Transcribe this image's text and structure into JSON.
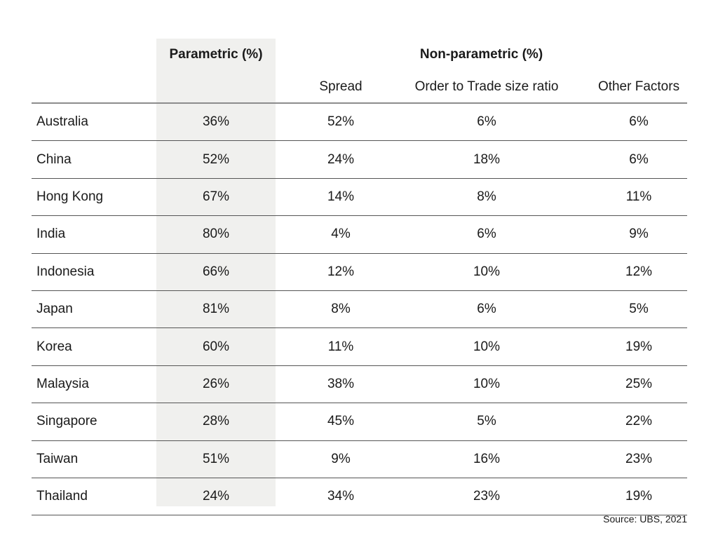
{
  "header": {
    "parametric": "Parametric (%)",
    "non_parametric": "Non-parametric (%)",
    "sub_headers": [
      "Spread",
      "Order to Trade size ratio",
      "Other Factors"
    ]
  },
  "rows": [
    {
      "country": "Australia",
      "parametric": "36%",
      "spread": "52%",
      "order_to_trade": "6%",
      "other": "6%"
    },
    {
      "country": "China",
      "parametric": "52%",
      "spread": "24%",
      "order_to_trade": "18%",
      "other": "6%"
    },
    {
      "country": "Hong Kong",
      "parametric": "67%",
      "spread": "14%",
      "order_to_trade": "8%",
      "other": "11%"
    },
    {
      "country": "India",
      "parametric": "80%",
      "spread": "4%",
      "order_to_trade": "6%",
      "other": "9%"
    },
    {
      "country": "Indonesia",
      "parametric": "66%",
      "spread": "12%",
      "order_to_trade": "10%",
      "other": "12%"
    },
    {
      "country": "Japan",
      "parametric": "81%",
      "spread": "8%",
      "order_to_trade": "6%",
      "other": "5%"
    },
    {
      "country": "Korea",
      "parametric": "60%",
      "spread": "11%",
      "order_to_trade": "10%",
      "other": "19%"
    },
    {
      "country": "Malaysia",
      "parametric": "26%",
      "spread": "38%",
      "order_to_trade": "10%",
      "other": "25%"
    },
    {
      "country": "Singapore",
      "parametric": "28%",
      "spread": "45%",
      "order_to_trade": "5%",
      "other": "22%"
    },
    {
      "country": "Taiwan",
      "parametric": "51%",
      "spread": "9%",
      "order_to_trade": "16%",
      "other": "23%"
    },
    {
      "country": "Thailand",
      "parametric": "24%",
      "spread": "34%",
      "order_to_trade": "23%",
      "other": "19%"
    }
  ],
  "source": "Source: UBS, 2021",
  "colors": {
    "highlight_band": "#f0f0ee",
    "text": "#1a1a1a",
    "header_rule": "#8c8c8c",
    "row_rule": "#555555"
  },
  "chart_data": {
    "type": "table",
    "categories": [
      "Australia",
      "China",
      "Hong Kong",
      "India",
      "Indonesia",
      "Japan",
      "Korea",
      "Malaysia",
      "Singapore",
      "Taiwan",
      "Thailand"
    ],
    "series": [
      {
        "name": "Parametric (%)",
        "values": [
          36,
          52,
          67,
          80,
          66,
          81,
          60,
          26,
          28,
          51,
          24
        ]
      },
      {
        "name": "Non-parametric (%) - Spread",
        "values": [
          52,
          24,
          14,
          4,
          12,
          8,
          11,
          38,
          45,
          9,
          34
        ]
      },
      {
        "name": "Non-parametric (%) - Order to Trade size ratio",
        "values": [
          6,
          18,
          8,
          6,
          10,
          6,
          10,
          10,
          5,
          16,
          23
        ]
      },
      {
        "name": "Non-parametric (%) - Other Factors",
        "values": [
          6,
          6,
          11,
          9,
          12,
          5,
          19,
          25,
          22,
          23,
          19
        ]
      }
    ],
    "title": "",
    "annotations": [
      "Source: UBS, 2021"
    ],
    "legend_position": "none",
    "grid": "horizontal-rules-only"
  }
}
